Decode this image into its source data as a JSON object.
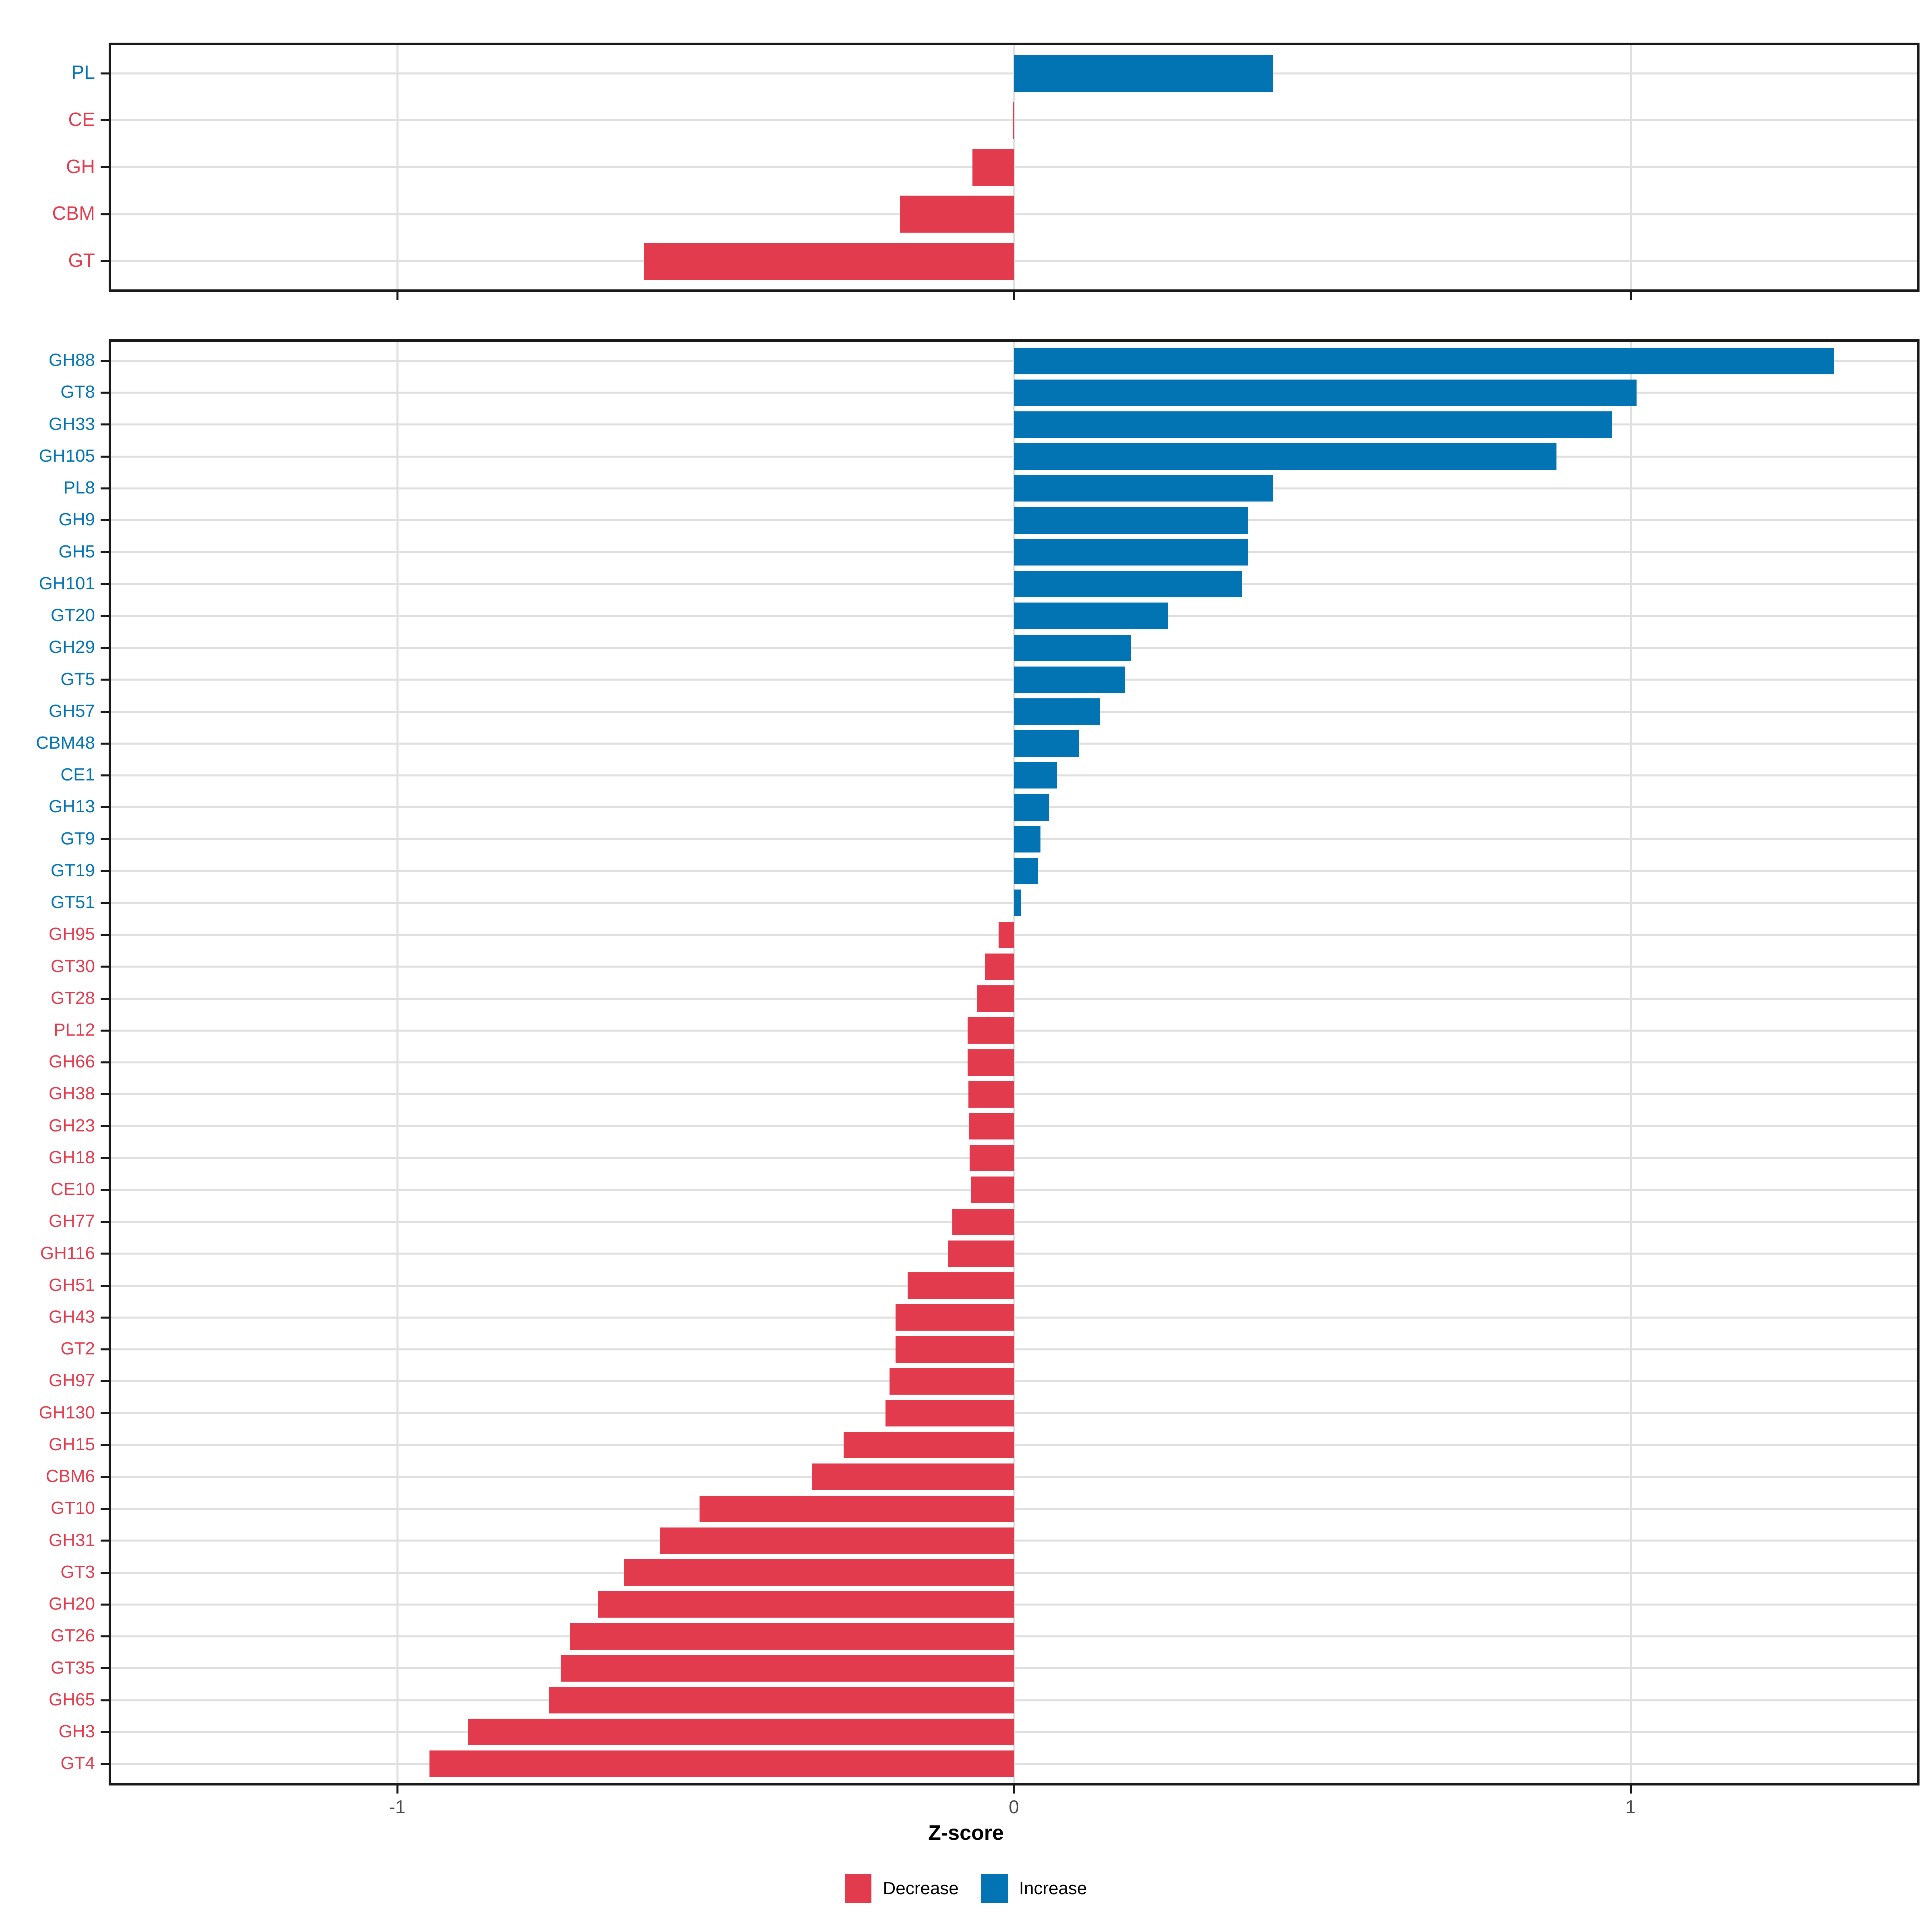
{
  "axis": {
    "title": "Z-score",
    "ticks": [
      "-1",
      "0",
      "1"
    ],
    "tick_values": [
      -1,
      0,
      1
    ],
    "xlim": [
      -1.465,
      1.465
    ]
  },
  "legend": {
    "items": [
      {
        "label": "Decrease",
        "key": "decrease"
      },
      {
        "label": "Increase",
        "key": "increase"
      }
    ]
  },
  "colors": {
    "increase": "#0273b3",
    "decrease": "#e33b4e",
    "grid": "#e0e0e0",
    "axis": "#1a1a1a",
    "tick_label": "#4d4d4d"
  },
  "chart_data": [
    {
      "type": "bar",
      "orientation": "horizontal",
      "panel": "top",
      "title": "",
      "xlabel": "Z-score",
      "ylabel": "",
      "xlim": [
        -1.465,
        1.465
      ],
      "grid": true,
      "categories": [
        "PL",
        "CE",
        "GH",
        "CBM",
        "GT"
      ],
      "values": [
        0.42,
        -0.002,
        -0.067,
        -0.185,
        -0.6
      ],
      "directions": [
        "increase",
        "decrease",
        "decrease",
        "decrease",
        "decrease"
      ]
    },
    {
      "type": "bar",
      "orientation": "horizontal",
      "panel": "bottom",
      "title": "",
      "xlabel": "Z-score",
      "ylabel": "",
      "xlim": [
        -1.465,
        1.465
      ],
      "grid": true,
      "categories": [
        "GH88",
        "GT8",
        "GH33",
        "GH105",
        "PL8",
        "GH9",
        "GH5",
        "GH101",
        "GT20",
        "GH29",
        "GT5",
        "GH57",
        "CBM48",
        "CE1",
        "GH13",
        "GT9",
        "GT19",
        "GT51",
        "GH95",
        "GT30",
        "GT28",
        "PL12",
        "GH66",
        "GH38",
        "GH23",
        "GH18",
        "CE10",
        "GH77",
        "GH116",
        "GH51",
        "GH43",
        "GT2",
        "GH97",
        "GH130",
        "GH15",
        "CBM6",
        "GT10",
        "GH31",
        "GT3",
        "GH20",
        "GT26",
        "GT35",
        "GH65",
        "GH3",
        "GT4"
      ],
      "values": [
        1.33,
        1.01,
        0.97,
        0.88,
        0.42,
        0.38,
        0.38,
        0.37,
        0.25,
        0.19,
        0.18,
        0.14,
        0.105,
        0.07,
        0.057,
        0.043,
        0.039,
        0.012,
        -0.025,
        -0.047,
        -0.06,
        -0.075,
        -0.075,
        -0.074,
        -0.073,
        -0.072,
        -0.07,
        -0.1,
        -0.107,
        -0.172,
        -0.192,
        -0.192,
        -0.202,
        -0.208,
        -0.276,
        -0.327,
        -0.51,
        -0.574,
        -0.632,
        -0.674,
        -0.72,
        -0.735,
        -0.754,
        -0.886,
        -0.948
      ],
      "directions": [
        "increase",
        "increase",
        "increase",
        "increase",
        "increase",
        "increase",
        "increase",
        "increase",
        "increase",
        "increase",
        "increase",
        "increase",
        "increase",
        "increase",
        "increase",
        "increase",
        "increase",
        "increase",
        "decrease",
        "decrease",
        "decrease",
        "decrease",
        "decrease",
        "decrease",
        "decrease",
        "decrease",
        "decrease",
        "decrease",
        "decrease",
        "decrease",
        "decrease",
        "decrease",
        "decrease",
        "decrease",
        "decrease",
        "decrease",
        "decrease",
        "decrease",
        "decrease",
        "decrease",
        "decrease",
        "decrease",
        "decrease",
        "decrease",
        "decrease"
      ]
    }
  ]
}
